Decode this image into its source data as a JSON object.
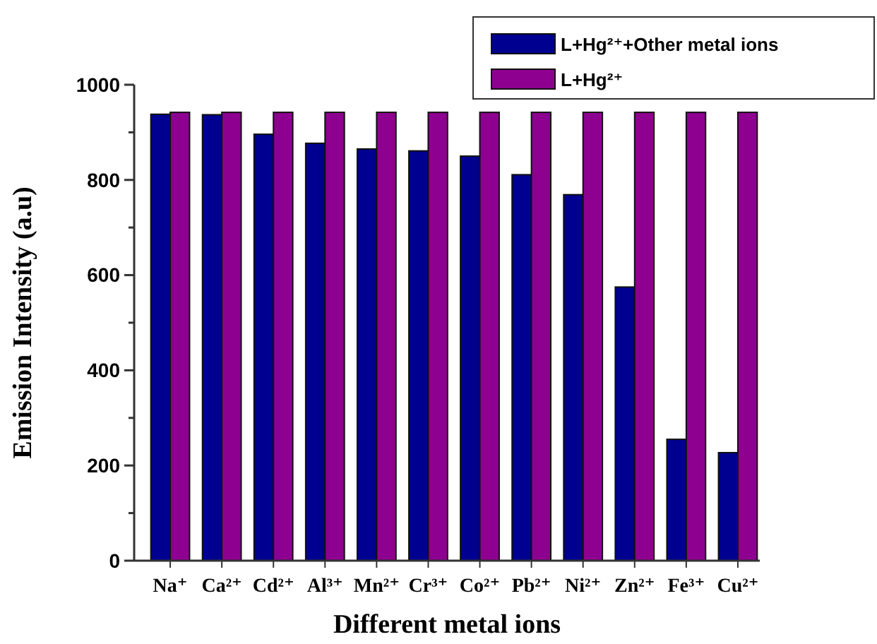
{
  "chart_data": {
    "type": "bar",
    "xlabel": "Different metal ions",
    "ylabel": "Emission Intensity (a.u)",
    "categories": [
      "Na⁺",
      "Ca²⁺",
      "Cd²⁺",
      "Al³⁺",
      "Mn²⁺",
      "Cr³⁺",
      "Co²⁺",
      "Pb²⁺",
      "Ni²⁺",
      "Zn²⁺",
      "Fe³⁺",
      "Cu²⁺"
    ],
    "series": [
      {
        "name": "L+Hg²⁺+Other metal ions",
        "color": "#000090",
        "values": [
          938,
          937,
          896,
          877,
          865,
          861,
          850,
          811,
          769,
          575,
          255,
          227
        ]
      },
      {
        "name": "L+Hg²⁺",
        "color": "#8e0090",
        "values": [
          942,
          942,
          942,
          942,
          942,
          942,
          942,
          942,
          942,
          942,
          942,
          942
        ]
      }
    ],
    "ylim": [
      0,
      1000
    ],
    "yticks": [
      0,
      {
        "value": 100,
        "label": null
      },
      200,
      {
        "value": 300,
        "label": null
      },
      400,
      {
        "value": 500,
        "label": null
      },
      600,
      {
        "value": 700,
        "label": null
      },
      800,
      {
        "value": 900,
        "label": null
      },
      1000
    ],
    "grid": false,
    "legend": "top right"
  }
}
